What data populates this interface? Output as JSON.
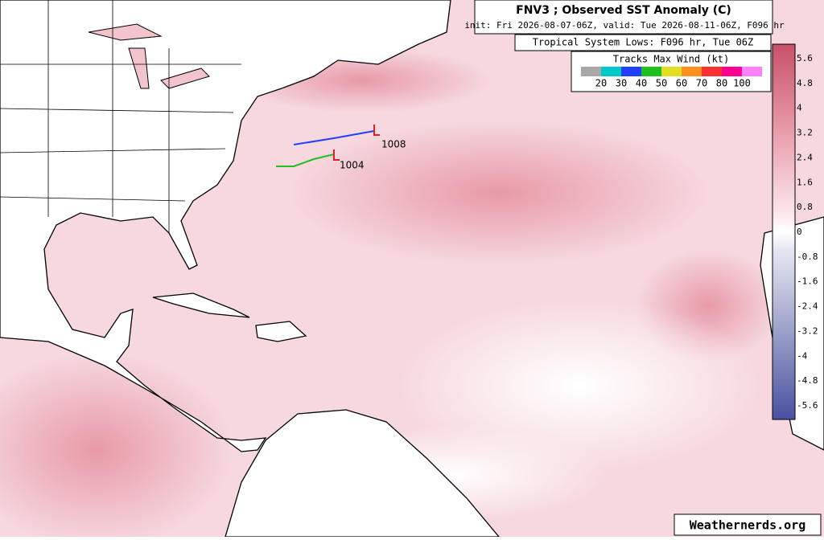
{
  "header": {
    "title": "FNV3 ; Observed SST Anomaly (C)",
    "subtitle": "init: Fri 2026-08-07-06Z, valid: Tue 2026-08-11-06Z, F096 hr"
  },
  "systems": {
    "title": "Tropical System Lows: F096 hr, Tue 06Z",
    "lows": [
      "1008",
      "1004"
    ]
  },
  "track_legend": {
    "title": "Tracks Max Wind (kt)",
    "labels": [
      "20",
      "30",
      "40",
      "50",
      "60",
      "70",
      "80",
      "100"
    ],
    "colors": [
      "#a8a8a8",
      "#00c8c8",
      "#2040ff",
      "#20c020",
      "#e0e020",
      "#ff9020",
      "#ff3030",
      "#ff0090",
      "#ff80ff"
    ]
  },
  "colorbar": {
    "labels": [
      5.6,
      4.8,
      4,
      3.2,
      2.4,
      1.6,
      0.8,
      0,
      -0.8,
      -1.6,
      -2.4,
      -3.2,
      -4,
      -4.8,
      -5.6
    ]
  },
  "credit": "Weathernerds.org"
}
